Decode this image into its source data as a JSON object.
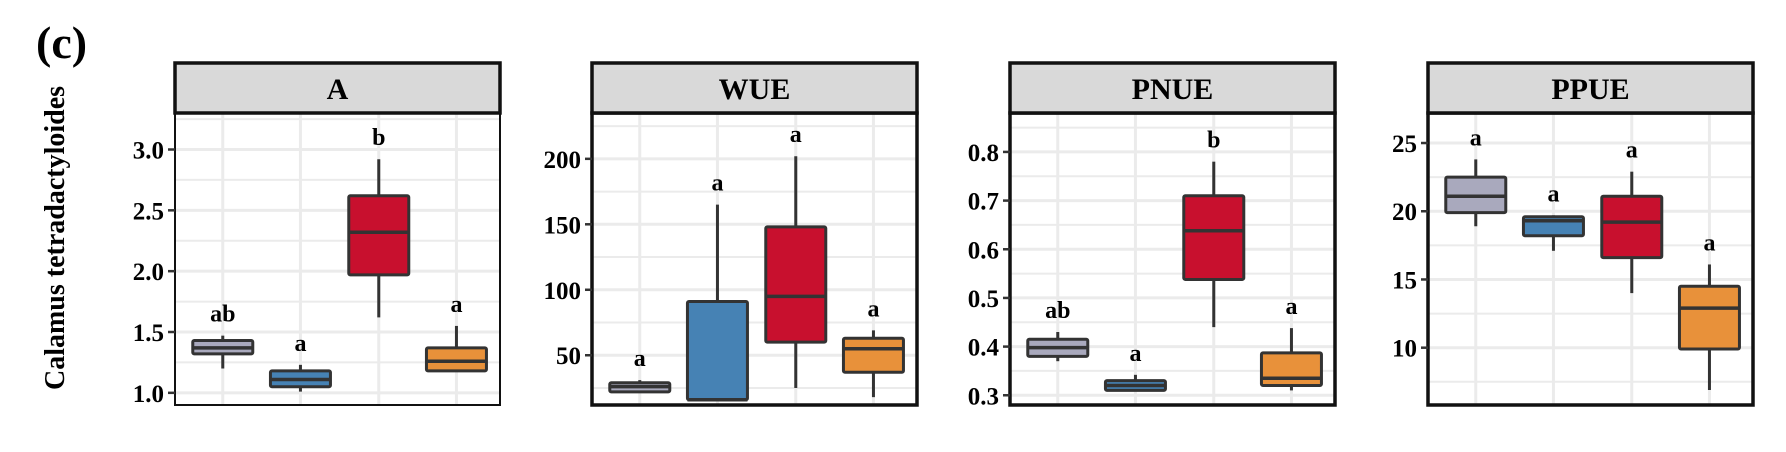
{
  "panel_letter": "(c)",
  "row_label": "Calamus tetradactyloides",
  "colors": {
    "groups": [
      "#A9A9BD",
      "#4682B4",
      "#C8102E",
      "#E8913A"
    ],
    "strip_fill": "#D9D9D9",
    "grid": "#EBEBEB",
    "line": "#333333"
  },
  "chart_data": [
    {
      "type": "box",
      "title": "A",
      "ylim": [
        0.9,
        3.3
      ],
      "yticks": [
        1.0,
        1.5,
        2.0,
        2.5,
        3.0
      ],
      "tick_labels": [
        "1.0",
        "1.5",
        "2.0",
        "2.5",
        "3.0"
      ],
      "grid": true,
      "boxes": [
        {
          "min": 1.2,
          "q1": 1.32,
          "median": 1.37,
          "q3": 1.43,
          "max": 1.47,
          "label": "ab"
        },
        {
          "min": 1.01,
          "q1": 1.05,
          "median": 1.11,
          "q3": 1.18,
          "max": 1.23,
          "label": "a"
        },
        {
          "min": 1.62,
          "q1": 1.97,
          "median": 2.32,
          "q3": 2.62,
          "max": 2.92,
          "label": "b"
        },
        {
          "min": 1.18,
          "q1": 1.18,
          "median": 1.26,
          "q3": 1.37,
          "max": 1.55,
          "label": "a"
        }
      ]
    },
    {
      "type": "box",
      "title": "WUE",
      "ylim": [
        12,
        235
      ],
      "yticks": [
        50,
        100,
        150,
        200
      ],
      "tick_labels": [
        "50",
        "100",
        "150",
        "200"
      ],
      "grid": true,
      "boxes": [
        {
          "min": 22,
          "q1": 22,
          "median": 26,
          "q3": 29,
          "max": 31,
          "label": "a"
        },
        {
          "min": 16,
          "q1": 16,
          "median": 16,
          "q3": 91,
          "max": 165,
          "label": "a"
        },
        {
          "min": 25,
          "q1": 60,
          "median": 95,
          "q3": 148,
          "max": 202,
          "label": "a"
        },
        {
          "min": 18,
          "q1": 37,
          "median": 55,
          "q3": 63,
          "max": 69,
          "label": "a"
        }
      ]
    },
    {
      "type": "box",
      "title": "PNUE",
      "ylim": [
        0.28,
        0.88
      ],
      "yticks": [
        0.3,
        0.4,
        0.5,
        0.6,
        0.7,
        0.8
      ],
      "tick_labels": [
        "0.3",
        "0.4",
        "0.5",
        "0.6",
        "0.7",
        "0.8"
      ],
      "grid": true,
      "boxes": [
        {
          "min": 0.37,
          "q1": 0.38,
          "median": 0.398,
          "q3": 0.415,
          "max": 0.43,
          "label": "ab"
        },
        {
          "min": 0.31,
          "q1": 0.31,
          "median": 0.32,
          "q3": 0.33,
          "max": 0.342,
          "label": "a"
        },
        {
          "min": 0.44,
          "q1": 0.538,
          "median": 0.638,
          "q3": 0.71,
          "max": 0.78,
          "label": "b"
        },
        {
          "min": 0.31,
          "q1": 0.32,
          "median": 0.335,
          "q3": 0.387,
          "max": 0.438,
          "label": "a"
        }
      ]
    },
    {
      "type": "box",
      "title": "PPUE",
      "ylim": [
        5.8,
        27.2
      ],
      "yticks": [
        10,
        15,
        20,
        25
      ],
      "tick_labels": [
        "10",
        "15",
        "20",
        "25"
      ],
      "grid": true,
      "boxes": [
        {
          "min": 18.9,
          "q1": 19.9,
          "median": 21.1,
          "q3": 22.5,
          "max": 23.8,
          "label": "a"
        },
        {
          "min": 17.1,
          "q1": 18.2,
          "median": 19.3,
          "q3": 19.6,
          "max": 19.7,
          "label": "a"
        },
        {
          "min": 14.0,
          "q1": 16.6,
          "median": 19.2,
          "q3": 21.1,
          "max": 22.9,
          "label": "a"
        },
        {
          "min": 6.9,
          "q1": 9.9,
          "median": 12.9,
          "q3": 14.5,
          "max": 16.1,
          "label": "a"
        }
      ]
    }
  ]
}
